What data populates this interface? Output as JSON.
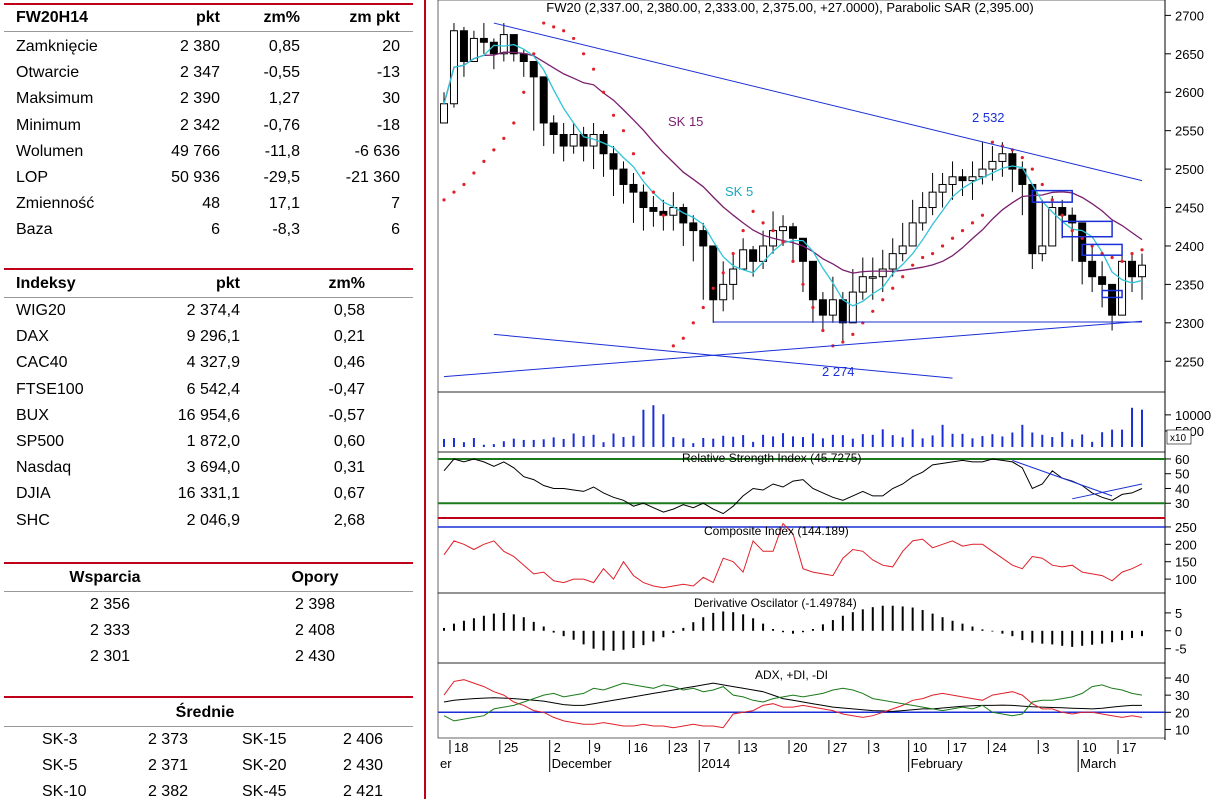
{
  "futures_table": {
    "headers": [
      "FW20H14",
      "pkt",
      "zm%",
      "zm pkt"
    ],
    "rows": [
      [
        "Zamknięcie",
        "2 380",
        "0,85",
        "20"
      ],
      [
        "Otwarcie",
        "2 347",
        "-0,55",
        "-13"
      ],
      [
        "Maksimum",
        "2 390",
        "1,27",
        "30"
      ],
      [
        "Minimum",
        "2 342",
        "-0,76",
        "-18"
      ],
      [
        "Wolumen",
        "49 766",
        "-11,8",
        "-6 636"
      ],
      [
        "LOP",
        "50 936",
        "-29,5",
        "-21 360"
      ],
      [
        "Zmienność",
        "48",
        "17,1",
        "7"
      ],
      [
        "Baza",
        "6",
        "-8,3",
        "6"
      ]
    ]
  },
  "indices_table": {
    "headers": [
      "Indeksy",
      "pkt",
      "zm%"
    ],
    "rows": [
      [
        "WIG20",
        "2 374,4",
        "0,58"
      ],
      [
        "DAX",
        "9 296,1",
        "0,21"
      ],
      [
        "CAC40",
        "4 327,9",
        "0,46"
      ],
      [
        "FTSE100",
        "6 542,4",
        "-0,47"
      ],
      [
        "BUX",
        "16 954,6",
        "-0,57"
      ],
      [
        "SP500",
        "1 872,0",
        "0,60"
      ],
      [
        "Nasdaq",
        "3 694,0",
        "0,31"
      ],
      [
        "DJIA",
        "16 331,1",
        "0,67"
      ],
      [
        "SHC",
        "2 046,9",
        "2,68"
      ]
    ]
  },
  "levels_table": {
    "headers": [
      "Wsparcia",
      "Opory"
    ],
    "rows": [
      [
        "2 356",
        "2 398"
      ],
      [
        "2 333",
        "2 408"
      ],
      [
        "2 301",
        "2 430"
      ]
    ]
  },
  "averages_table": {
    "header": "Średnie",
    "rows": [
      [
        "SK-3",
        "2 373",
        "SK-15",
        "2 406"
      ],
      [
        "SK-5",
        "2 371",
        "SK-20",
        "2 430"
      ],
      [
        "SK-10",
        "2 382",
        "SK-45",
        "2 421"
      ]
    ]
  },
  "chart_data": [
    {
      "type": "candlestick",
      "title": "FW20 (2,337.00, 2,380.00, 2,333.00, 2,375.00, +27.0000), Parabolic SAR (2,395.00)",
      "ylim": [
        2210,
        2720
      ],
      "yticks": [
        2250,
        2300,
        2350,
        2400,
        2450,
        2500,
        2550,
        2600,
        2650,
        2700
      ],
      "annotations": [
        "SK 15",
        "SK 5",
        "2 532",
        "2 274"
      ],
      "close": [
        2585,
        2680,
        2640,
        2670,
        2665,
        2650,
        2675,
        2650,
        2640,
        2620,
        2560,
        2545,
        2530,
        2545,
        2530,
        2545,
        2520,
        2500,
        2480,
        2470,
        2450,
        2445,
        2440,
        2450,
        2430,
        2420,
        2400,
        2330,
        2350,
        2370,
        2395,
        2380,
        2400,
        2420,
        2425,
        2410,
        2380,
        2330,
        2310,
        2330,
        2300,
        2340,
        2360,
        2360,
        2370,
        2390,
        2400,
        2430,
        2450,
        2470,
        2480,
        2490,
        2485,
        2490,
        2500,
        2510,
        2520,
        2500,
        2480,
        2390,
        2400,
        2450,
        2440,
        2430,
        2380,
        2360,
        2350,
        2310,
        2380,
        2360,
        2375
      ],
      "high": [
        2600,
        2690,
        2685,
        2680,
        2690,
        2670,
        2690,
        2670,
        2655,
        2640,
        2600,
        2570,
        2560,
        2560,
        2555,
        2560,
        2550,
        2530,
        2510,
        2495,
        2480,
        2465,
        2460,
        2470,
        2455,
        2440,
        2430,
        2400,
        2380,
        2390,
        2410,
        2400,
        2420,
        2445,
        2440,
        2430,
        2410,
        2375,
        2340,
        2360,
        2340,
        2370,
        2385,
        2385,
        2395,
        2410,
        2430,
        2460,
        2470,
        2495,
        2495,
        2510,
        2500,
        2510,
        2535,
        2530,
        2535,
        2525,
        2510,
        2450,
        2460,
        2465,
        2460,
        2450,
        2420,
        2400,
        2380,
        2350,
        2390,
        2390,
        2390
      ],
      "low": [
        2560,
        2580,
        2620,
        2640,
        2650,
        2630,
        2640,
        2640,
        2620,
        2550,
        2530,
        2520,
        2510,
        2520,
        2510,
        2500,
        2490,
        2465,
        2455,
        2430,
        2420,
        2425,
        2420,
        2420,
        2400,
        2380,
        2330,
        2300,
        2315,
        2330,
        2370,
        2360,
        2370,
        2390,
        2400,
        2380,
        2340,
        2300,
        2290,
        2300,
        2274,
        2300,
        2330,
        2330,
        2340,
        2360,
        2380,
        2400,
        2420,
        2440,
        2450,
        2460,
        2465,
        2460,
        2480,
        2485,
        2490,
        2470,
        2440,
        2370,
        2380,
        2410,
        2410,
        2380,
        2350,
        2340,
        2320,
        2290,
        2330,
        2340,
        2330
      ],
      "sar": [
        2460,
        2470,
        2480,
        2495,
        2510,
        2525,
        2540,
        2560,
        2600,
        2650,
        2690,
        2685,
        2680,
        2670,
        2650,
        2630,
        2600,
        2570,
        2550,
        2520,
        2495,
        2470,
        2440,
        2270,
        2280,
        2300,
        2320,
        2345,
        2365,
        2390,
        2420,
        2445,
        2430,
        2420,
        2405,
        2380,
        2350,
        2320,
        2290,
        2270,
        2275,
        2285,
        2300,
        2315,
        2330,
        2345,
        2360,
        2375,
        2385,
        2390,
        2400,
        2410,
        2420,
        2430,
        2440,
        2535,
        2530,
        2525,
        2515,
        2500,
        2480,
        2460,
        2440,
        2420,
        2410,
        2400,
        2390,
        2385,
        2380,
        2390,
        2395
      ]
    },
    {
      "type": "bar",
      "title": "",
      "yticks": [
        5000,
        10000
      ],
      "ytick_labels": [
        "5000",
        "10000"
      ],
      "multiplier_label": "x10",
      "values": [
        2500,
        2800,
        1500,
        2800,
        700,
        900,
        1800,
        2600,
        2200,
        2200,
        2400,
        3000,
        2500,
        4200,
        3400,
        3800,
        1500,
        4200,
        3100,
        3500,
        11600,
        13000,
        10200,
        3100,
        2700,
        1200,
        2800,
        2600,
        3500,
        3200,
        3700,
        1600,
        3800,
        3300,
        4300,
        3300,
        3100,
        4200,
        2700,
        3800,
        3700,
        2600,
        4000,
        3800,
        5500,
        3700,
        3000,
        5500,
        2700,
        3600,
        6900,
        4100,
        4100,
        2700,
        3400,
        4000,
        3300,
        4500,
        6900,
        4500,
        3800,
        3100,
        4700,
        2400,
        3900,
        1600,
        4600,
        5400,
        5400,
        12200,
        11600
      ]
    },
    {
      "type": "line",
      "title": "Relative Strength Index (45.7275)",
      "ylim": [
        20,
        62
      ],
      "yticks": [
        30,
        40,
        50,
        60
      ],
      "levels": [
        60,
        30,
        20
      ],
      "values": [
        52,
        60,
        58,
        60,
        58,
        55,
        58,
        54,
        48,
        46,
        42,
        40,
        40,
        39,
        38,
        41,
        37,
        34,
        32,
        28,
        30,
        27,
        24,
        26,
        29,
        27,
        30,
        26,
        23,
        28,
        35,
        40,
        39,
        43,
        41,
        45,
        46,
        40,
        37,
        34,
        32,
        35,
        38,
        35,
        35,
        40,
        43,
        48,
        51,
        56,
        57,
        58,
        59,
        58,
        58,
        60,
        59,
        58,
        54,
        40,
        43,
        52,
        47,
        45,
        42,
        37,
        34,
        32,
        36,
        37,
        40
      ]
    },
    {
      "type": "line",
      "title": "Composite Index (144.189)",
      "ylim": [
        60,
        270
      ],
      "yticks": [
        100,
        150,
        200,
        250
      ],
      "level": 250,
      "values": [
        170,
        210,
        200,
        185,
        200,
        210,
        180,
        165,
        140,
        115,
        120,
        95,
        90,
        100,
        100,
        90,
        130,
        100,
        150,
        110,
        90,
        80,
        75,
        80,
        85,
        80,
        105,
        90,
        160,
        150,
        120,
        210,
        180,
        180,
        260,
        230,
        130,
        120,
        115,
        110,
        160,
        185,
        180,
        155,
        140,
        135,
        180,
        210,
        215,
        190,
        200,
        210,
        195,
        200,
        200,
        180,
        160,
        140,
        130,
        165,
        160,
        140,
        135,
        140,
        120,
        115,
        110,
        95,
        120,
        130,
        144
      ]
    },
    {
      "type": "bar",
      "title": "Derivative Oscilator (-1.49784)",
      "ylim": [
        -9,
        10
      ],
      "yticks": [
        -5,
        0,
        5
      ],
      "values": [
        0.8,
        2,
        2.8,
        3.5,
        4.2,
        4.8,
        5,
        4.6,
        3.8,
        2.5,
        1.2,
        -0.5,
        -1.5,
        -2.5,
        -3.8,
        -5,
        -5.5,
        -5.6,
        -5.3,
        -4.8,
        -4,
        -3,
        -1.8,
        -0.6,
        0.8,
        2.4,
        3.8,
        5,
        5.4,
        5.2,
        4.6,
        3.5,
        2,
        0.5,
        -0.4,
        -0.8,
        -0.4,
        0.5,
        1.8,
        3,
        4.2,
        5.2,
        6,
        6.6,
        7,
        7,
        6.8,
        6.5,
        5.8,
        4.8,
        3.8,
        2.8,
        2,
        1.2,
        0.4,
        -0.2,
        -0.8,
        -1.5,
        -2.6,
        -3.3,
        -3.6,
        -3.8,
        -4.2,
        -4.5,
        -4.2,
        -3.9,
        -3.6,
        -3.2,
        -2.6,
        -2,
        -1.5
      ]
    },
    {
      "type": "line",
      "title": "ADX, +DI, -DI",
      "ylim": [
        5,
        47
      ],
      "yticks": [
        10,
        20,
        30,
        40
      ],
      "level": 20,
      "series": [
        {
          "name": "ADX",
          "values": [
            26,
            27,
            27.5,
            28,
            28.3,
            28.5,
            28.3,
            28,
            27.5,
            27,
            26.5,
            25.5,
            24.5,
            24,
            24,
            25,
            26,
            27,
            28,
            29,
            30,
            31,
            32,
            33,
            34,
            35,
            36,
            37,
            36,
            35,
            34,
            33,
            32,
            30,
            28,
            27,
            26,
            25,
            24,
            23,
            22.5,
            22,
            21.5,
            21,
            20.8,
            20.5,
            21,
            21.5,
            22,
            22,
            22.5,
            23,
            23.5,
            23.8,
            24,
            24,
            24.2,
            24,
            23.6,
            23.2,
            23,
            22.8,
            22.6,
            22.4,
            22.2,
            22,
            22.4,
            23,
            23.6,
            24,
            24
          ]
        },
        {
          "name": "+DI",
          "values": [
            30,
            38,
            39,
            37,
            35,
            32,
            30,
            26,
            24,
            21,
            20,
            17,
            15,
            14,
            13,
            13,
            14,
            13,
            12,
            12,
            13,
            12,
            12,
            11,
            12,
            13,
            12,
            12,
            11,
            19,
            20,
            21,
            24,
            25,
            23,
            23,
            24,
            23,
            22,
            21,
            19,
            18,
            17,
            18,
            20,
            22,
            24,
            27,
            28,
            30,
            31,
            30,
            29,
            28,
            27,
            30,
            31,
            32,
            30,
            25,
            22,
            22,
            20,
            19,
            20,
            20,
            19,
            18,
            17,
            18,
            17
          ]
        },
        {
          "name": "-DI",
          "values": [
            18,
            15,
            16,
            17,
            18,
            22,
            23,
            24,
            26,
            28,
            30,
            31,
            29,
            30,
            31,
            34,
            33,
            35,
            37,
            36,
            35,
            34,
            36,
            35,
            33,
            34,
            32,
            33,
            35,
            30,
            29,
            27,
            26,
            28,
            29,
            30,
            29,
            30,
            31,
            33,
            34,
            33,
            31,
            28,
            27,
            26,
            25,
            24,
            23,
            22,
            21,
            22,
            23,
            22,
            24,
            20,
            19,
            18,
            19,
            26,
            27,
            27,
            28,
            29,
            31,
            35,
            36,
            34,
            33,
            31,
            30
          ]
        }
      ]
    }
  ],
  "x_axis": {
    "day_labels": [
      "18",
      "25",
      "2",
      "9",
      "16",
      "23",
      "7",
      "13",
      "20",
      "27",
      "3",
      "10",
      "17",
      "24",
      "3",
      "10",
      "17"
    ],
    "month_labels": [
      "er",
      "December",
      "2014",
      "February",
      "March"
    ]
  },
  "colors": {
    "accent_red": "#c0001a",
    "sk5": "#2ec4d6",
    "sk15": "#7a1f6e",
    "sar": "#e0202a",
    "trend": "#1a2fd6"
  }
}
